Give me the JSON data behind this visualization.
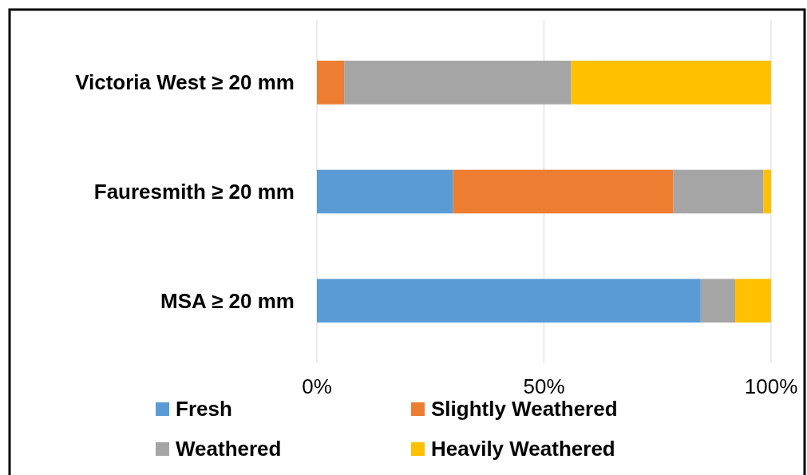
{
  "chart_data": {
    "type": "bar",
    "orientation": "horizontal",
    "stacked": true,
    "categories": [
      "Victoria West ≥ 20 mm",
      "Fauresmith ≥ 20 mm",
      "MSA ≥ 20 mm"
    ],
    "series": [
      {
        "name": "Fresh",
        "color": "#5b9bd5",
        "values": [
          0,
          30,
          84.5
        ]
      },
      {
        "name": "Slightly Weathered",
        "color": "#ed7d31",
        "values": [
          6,
          48.5,
          0
        ]
      },
      {
        "name": "Weathered",
        "color": "#a5a5a5",
        "values": [
          50,
          19.8,
          7.6
        ]
      },
      {
        "name": "Heavily Weathered",
        "color": "#ffc000",
        "values": [
          44,
          1.7,
          7.9
        ]
      }
    ],
    "xlim": [
      0,
      100
    ],
    "xticks": [
      {
        "value": 0,
        "label": "0%"
      },
      {
        "value": 50,
        "label": "50%"
      },
      {
        "value": 100,
        "label": "100%"
      }
    ],
    "grid": "x",
    "legend": "bottom"
  }
}
